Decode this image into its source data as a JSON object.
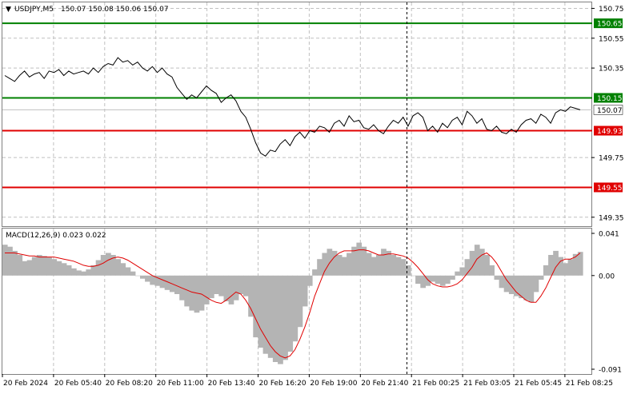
{
  "header": {
    "arrow": "▼",
    "symbol": "USDJPY,M5",
    "ohlc": "150.07 150.08 150.06 150.07"
  },
  "colors": {
    "price_line": "#000000",
    "green_level": "#008000",
    "red_level": "#e00000",
    "grid": "#c0c0c0",
    "macd_hist": "#b4b4b4",
    "macd_signal": "#e00000",
    "current_price_bg": "#ffffff"
  },
  "chart_data": [
    {
      "type": "line",
      "title": "USDJPY,M5",
      "ylim": [
        149.29,
        150.79
      ],
      "y_ticks": [
        "150.75",
        "150.55",
        "150.35",
        "149.75",
        "149.35"
      ],
      "level_lines": [
        {
          "value": 150.65,
          "label": "150.65",
          "color": "green"
        },
        {
          "value": 150.15,
          "label": "150.15",
          "color": "green"
        },
        {
          "value": 149.93,
          "label": "149.93",
          "color": "red"
        },
        {
          "value": 149.55,
          "label": "149.55",
          "color": "red"
        }
      ],
      "current_price": {
        "value": 150.07,
        "label": "150.07"
      },
      "x_ticks": [
        "20 Feb 2024",
        "20 Feb 05:40",
        "20 Feb 08:20",
        "20 Feb 11:00",
        "20 Feb 13:40",
        "20 Feb 16:20",
        "20 Feb 19:00",
        "20 Feb 21:40",
        "21 Feb 00:25",
        "21 Feb 03:05",
        "21 Feb 05:45",
        "21 Feb 08:25"
      ],
      "series": [
        {
          "values": [
            150.3,
            150.28,
            150.26,
            150.3,
            150.33,
            150.29,
            150.31,
            150.32,
            150.28,
            150.33,
            150.32,
            150.34,
            150.3,
            150.33,
            150.31,
            150.32,
            150.33,
            150.31,
            150.35,
            150.32,
            150.36,
            150.38,
            150.37,
            150.42,
            150.39,
            150.4,
            150.37,
            150.39,
            150.35,
            150.33,
            150.36,
            150.32,
            150.35,
            150.31,
            150.29,
            150.22,
            150.18,
            150.14,
            150.17,
            150.15,
            150.19,
            150.23,
            150.2,
            150.18,
            150.12,
            150.15,
            150.17,
            150.13,
            150.06,
            150.02,
            149.94,
            149.85,
            149.78,
            149.76,
            149.8,
            149.79,
            149.84,
            149.87,
            149.83,
            149.89,
            149.92,
            149.88,
            149.93,
            149.92,
            149.96,
            149.95,
            149.92,
            149.98,
            150.0,
            149.96,
            150.03,
            149.99,
            150.0,
            149.95,
            149.94,
            149.97,
            149.93,
            149.91,
            149.96,
            150.0,
            149.98,
            150.02,
            149.96,
            150.03,
            150.05,
            150.02,
            149.93,
            149.96,
            149.92,
            149.98,
            149.95,
            150.0,
            150.02,
            149.97,
            150.06,
            150.03,
            149.98,
            150.01,
            149.94,
            149.93,
            149.96,
            149.92,
            149.91,
            149.94,
            149.92,
            149.97,
            150.0,
            150.01,
            149.98,
            150.04,
            150.02,
            149.98,
            150.05,
            150.07,
            150.06,
            150.09,
            150.08,
            150.07
          ]
        }
      ]
    },
    {
      "type": "bar",
      "title": "MACD(12,26,9) 0.023 0.022",
      "ylim": [
        -0.091,
        0.041
      ],
      "y_ticks": [
        "0.041",
        "0.00",
        "-0.091"
      ],
      "series": [
        {
          "name": "MACD",
          "values": [
            0.03,
            0.028,
            0.024,
            0.02,
            0.014,
            0.015,
            0.018,
            0.02,
            0.019,
            0.018,
            0.016,
            0.014,
            0.012,
            0.01,
            0.007,
            0.005,
            0.004,
            0.006,
            0.01,
            0.015,
            0.02,
            0.022,
            0.02,
            0.016,
            0.012,
            0.008,
            0.004,
            0.0,
            -0.003,
            -0.006,
            -0.009,
            -0.01,
            -0.012,
            -0.014,
            -0.016,
            -0.018,
            -0.024,
            -0.03,
            -0.034,
            -0.036,
            -0.034,
            -0.028,
            -0.022,
            -0.018,
            -0.02,
            -0.025,
            -0.028,
            -0.024,
            -0.018,
            -0.02,
            -0.04,
            -0.06,
            -0.07,
            -0.076,
            -0.08,
            -0.084,
            -0.086,
            -0.082,
            -0.074,
            -0.064,
            -0.05,
            -0.03,
            -0.01,
            0.006,
            0.016,
            0.022,
            0.026,
            0.024,
            0.02,
            0.018,
            0.022,
            0.028,
            0.032,
            0.028,
            0.022,
            0.018,
            0.02,
            0.026,
            0.024,
            0.02,
            0.018,
            0.016,
            0.01,
            0.0,
            -0.008,
            -0.012,
            -0.01,
            -0.006,
            -0.008,
            -0.01,
            -0.008,
            -0.004,
            0.004,
            0.008,
            0.016,
            0.024,
            0.03,
            0.026,
            0.02,
            0.01,
            -0.004,
            -0.012,
            -0.016,
            -0.018,
            -0.02,
            -0.022,
            -0.024,
            -0.026,
            -0.016,
            -0.004,
            0.01,
            0.02,
            0.024,
            0.018,
            0.012,
            0.016,
            0.021,
            0.023
          ]
        },
        {
          "name": "Signal",
          "values": [
            0.022,
            0.022,
            0.022,
            0.021,
            0.02,
            0.019,
            0.019,
            0.018,
            0.018,
            0.018,
            0.018,
            0.017,
            0.016,
            0.015,
            0.014,
            0.012,
            0.01,
            0.009,
            0.009,
            0.01,
            0.012,
            0.015,
            0.017,
            0.018,
            0.017,
            0.015,
            0.012,
            0.009,
            0.006,
            0.003,
            0.0,
            -0.002,
            -0.004,
            -0.006,
            -0.008,
            -0.01,
            -0.012,
            -0.014,
            -0.016,
            -0.017,
            -0.018,
            -0.021,
            -0.024,
            -0.026,
            -0.027,
            -0.024,
            -0.02,
            -0.016,
            -0.018,
            -0.024,
            -0.032,
            -0.042,
            -0.052,
            -0.06,
            -0.068,
            -0.074,
            -0.078,
            -0.08,
            -0.078,
            -0.072,
            -0.062,
            -0.05,
            -0.036,
            -0.02,
            -0.008,
            0.004,
            0.012,
            0.018,
            0.022,
            0.024,
            0.024,
            0.024,
            0.025,
            0.025,
            0.024,
            0.022,
            0.02,
            0.02,
            0.021,
            0.021,
            0.02,
            0.019,
            0.017,
            0.013,
            0.008,
            0.002,
            -0.004,
            -0.008,
            -0.01,
            -0.011,
            -0.011,
            -0.01,
            -0.008,
            -0.004,
            0.002,
            0.008,
            0.016,
            0.02,
            0.022,
            0.018,
            0.012,
            0.004,
            -0.004,
            -0.01,
            -0.016,
            -0.02,
            -0.024,
            -0.026,
            -0.026,
            -0.02,
            -0.012,
            -0.002,
            0.008,
            0.014,
            0.016,
            0.016,
            0.018,
            0.022
          ]
        }
      ]
    }
  ]
}
